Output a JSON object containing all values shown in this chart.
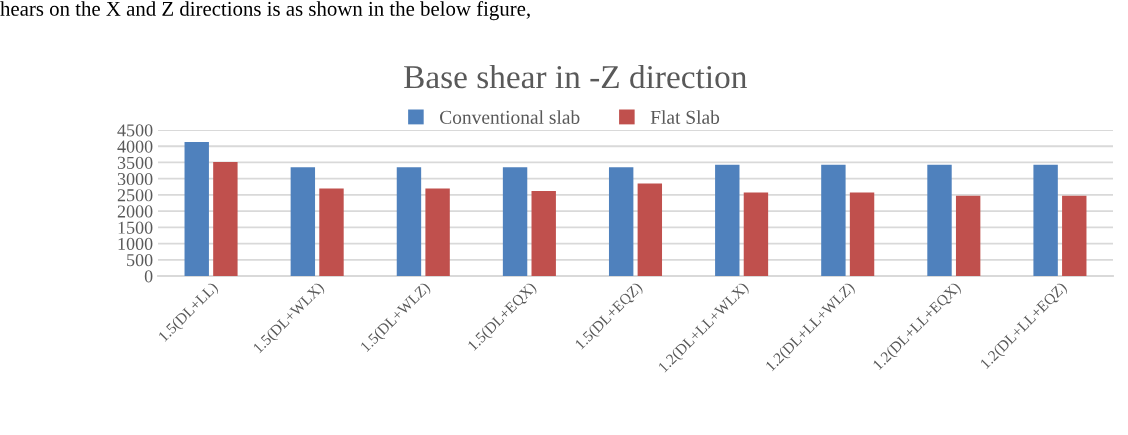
{
  "chart_data": {
    "type": "bar",
    "title": "Base shear in -Z direction",
    "annotations": [
      "hears on the X and Z directions is as shown in the below figure,"
    ],
    "categories": [
      "1.5(DL+LL)",
      "1.5(DL+WLX)",
      "1.5(DL+WLZ)",
      "1.5(DL+EQX)",
      "1.5(DL+EQZ)",
      "1.2(DL+LL+WLX)",
      "1.2(DL+LL+WLZ)",
      "1.2(DL+LL+EQX)",
      "1.2(DL+LL+EQZ)"
    ],
    "series": [
      {
        "name": "Conventional slab",
        "color": "#4f81bd",
        "values": [
          4130,
          3350,
          3350,
          3350,
          3350,
          3430,
          3430,
          3430,
          3430
        ]
      },
      {
        "name": "Flat Slab",
        "color": "#c0504d",
        "values": [
          3510,
          2700,
          2700,
          2620,
          2850,
          2570,
          2570,
          2470,
          2470
        ]
      }
    ],
    "ylim": [
      0,
      4500
    ],
    "yticks": [
      0,
      500,
      1000,
      1500,
      2000,
      2500,
      3000,
      3500,
      4000,
      4500
    ],
    "grid": "y",
    "legend": "top"
  }
}
